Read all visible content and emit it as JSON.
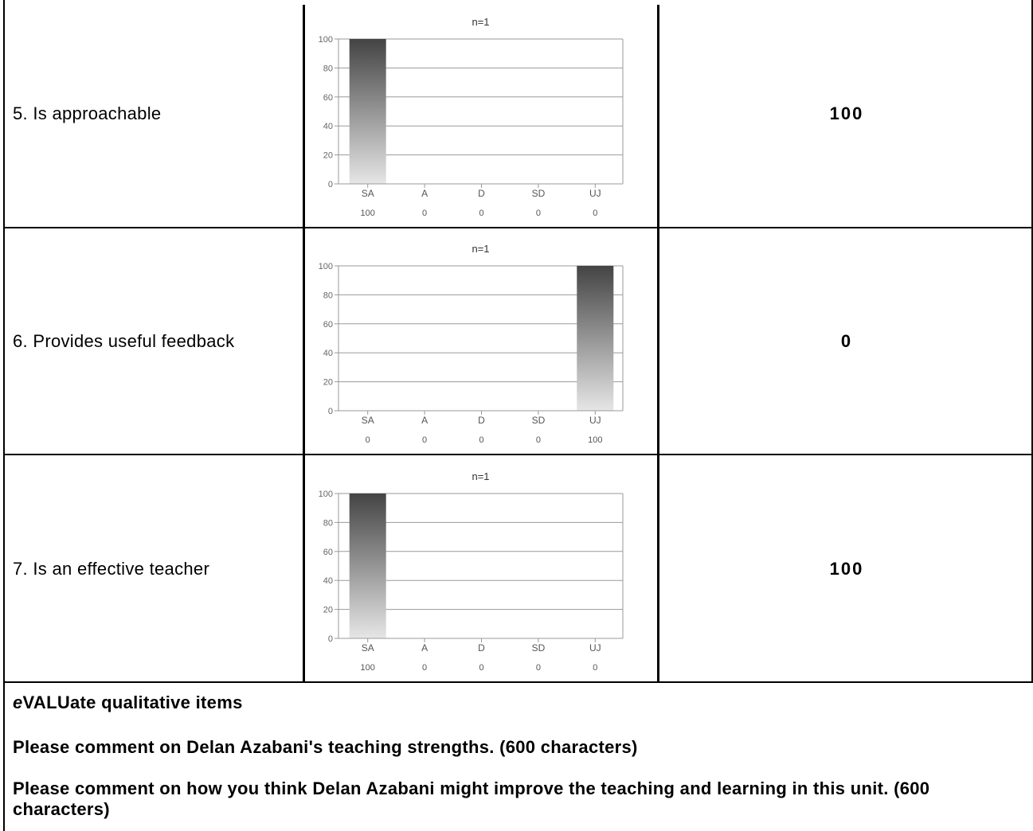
{
  "rows": [
    {
      "label": "5. Is approachable",
      "score": "100"
    },
    {
      "label": "6. Provides useful feedback",
      "score": "0"
    },
    {
      "label": "7. Is an effective teacher",
      "score": "100"
    }
  ],
  "qualitative": {
    "heading_prefix": "e",
    "heading_rest": "VALUate qualitative items",
    "item1": "Please comment on Delan Azabani's teaching strengths. (600 characters)",
    "item2": "Please comment on how you think Delan Azabani might improve the teaching and learning in this unit. (600 characters)"
  },
  "chart_data": [
    {
      "type": "bar",
      "title": "n=1",
      "categories": [
        "SA",
        "A",
        "D",
        "SD",
        "UJ"
      ],
      "values": [
        100,
        0,
        0,
        0,
        0
      ],
      "value_labels": [
        "100",
        "0",
        "0",
        "0",
        "0"
      ],
      "ylim": [
        0,
        100
      ],
      "yticks": [
        "0",
        "20",
        "40",
        "60",
        "80",
        "100"
      ],
      "grid": true
    },
    {
      "type": "bar",
      "title": "n=1",
      "categories": [
        "SA",
        "A",
        "D",
        "SD",
        "UJ"
      ],
      "values": [
        0,
        0,
        0,
        0,
        100
      ],
      "value_labels": [
        "0",
        "0",
        "0",
        "0",
        "100"
      ],
      "ylim": [
        0,
        100
      ],
      "yticks": [
        "0",
        "20",
        "40",
        "60",
        "80",
        "100"
      ],
      "grid": true
    },
    {
      "type": "bar",
      "title": "n=1",
      "categories": [
        "SA",
        "A",
        "D",
        "SD",
        "UJ"
      ],
      "values": [
        100,
        0,
        0,
        0,
        0
      ],
      "value_labels": [
        "100",
        "0",
        "0",
        "0",
        "0"
      ],
      "ylim": [
        0,
        100
      ],
      "yticks": [
        "0",
        "20",
        "40",
        "60",
        "80",
        "100"
      ],
      "grid": true
    }
  ]
}
